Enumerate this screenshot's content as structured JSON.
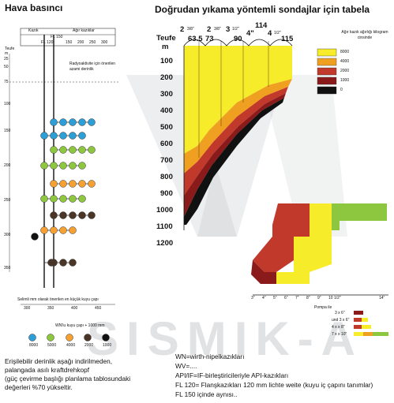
{
  "left_panel": {
    "title": "Hava basıncı",
    "axis_label": "Teufe m",
    "depth_ticks": [
      "25",
      "50",
      "75",
      "100",
      "150",
      "200",
      "250",
      "300",
      "350"
    ],
    "header_kazik": "Kazık",
    "header_agir": "Ağır kazıklar",
    "header_fl150": "FL 150",
    "header_fl120": "FL 120",
    "header_nums": [
      "150",
      "200",
      "250",
      "300"
    ],
    "radio_label": "Radyoaktivite için önerilen azami derinlik",
    "bottom_caption": "Selimli mm olarak önerilen en küçük kuyu çapı",
    "bottom_ticks": [
      "300",
      "350",
      "400",
      "450"
    ],
    "legend_caption": "WN'lu kuyu çapı + 1000 mm",
    "legend_items": [
      "8000",
      "5000",
      "4000",
      "2000",
      "1000"
    ],
    "legend_colors": [
      "#2d9fd6",
      "#8dc63f",
      "#f4a033",
      "#4a3526",
      "#111111"
    ],
    "notes": [
      "Erişilebilir derinlik aşağı indirilmeden,",
      "palangada asılı kraftdrehkopf",
      "(güç çevirme başlığı planlama tablosundaki",
      "değerleri %70 yükseltir."
    ]
  },
  "right_panel": {
    "title": "Doğrudan yıkama yöntemli sondajlar için tabela",
    "depth_label": "Teufe",
    "depth_unit": "m",
    "depth_ticks": [
      "100",
      "200",
      "300",
      "400",
      "500",
      "600",
      "700",
      "800",
      "900",
      "1000",
      "1100",
      "1200"
    ],
    "top_labels": [
      "2",
      "3/8\"",
      "2",
      "3/8\"",
      "3",
      "1/2\"",
      "4\"",
      "4",
      "1/2\""
    ],
    "top_numbers": [
      "63.5",
      "73",
      "90",
      "114",
      "115"
    ],
    "legend_title": "Ağır kazık ağırlığı kilogram cinsinde",
    "legend": [
      {
        "label": "8000",
        "color": "#f7ec2a"
      },
      {
        "label": "4000",
        "color": "#f0a020"
      },
      {
        "label": "2000",
        "color": "#c0392b"
      },
      {
        "label": "1000",
        "color": "#8b1a1a"
      },
      {
        "label": "0",
        "color": "#111111"
      }
    ],
    "pipe_ticks": [
      "3\"",
      "4\"",
      "5\"",
      "6\"",
      "7\"",
      "8\"",
      "9\"",
      "10 1/2\"",
      "14\""
    ],
    "pump_title": "Pompa ile",
    "pump_labels": [
      "3 x 6\"",
      "und 3 x 6\"",
      "4 x x 8\"",
      "7 x x 10\""
    ],
    "notes": [
      "WN=wirth-nipelkazıkları",
      "WV=....",
      "API/IF=IF-birleştiricileriyle API-kazıkları",
      "FL 120= Flanşkazıkları 120 mm lichte weite (kuyu iç çapını tanımlar)",
      "FL 150 içinde aynısı.."
    ]
  },
  "watermark": "SISMIK-A"
}
